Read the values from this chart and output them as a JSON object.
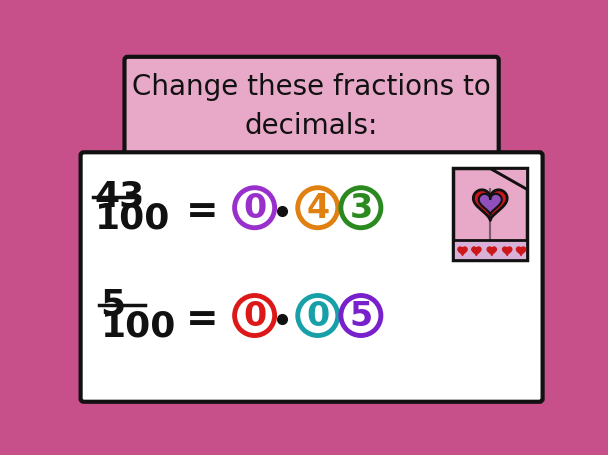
{
  "bg_pink": "#c8508a",
  "bg_white": "#ffffff",
  "header_bg": "#e8a8c8",
  "header_text": "Change these fractions to\ndecimals:",
  "header_text_color": "#111111",
  "fraction1_num": "43",
  "fraction1_den": "100",
  "fraction2_num": "5",
  "fraction2_den": "100",
  "row1_chips": [
    "0",
    "4",
    "3"
  ],
  "row1_colors": [
    "#9930cc",
    "#e08010",
    "#2a8a20"
  ],
  "row2_chips": [
    "0",
    "0",
    "5"
  ],
  "row2_colors": [
    "#dd1818",
    "#18a0a8",
    "#7820cc"
  ],
  "dot_color": "#111111",
  "equals_color": "#111111",
  "fraction_color": "#111111",
  "border_color": "#111111",
  "card_body": "#e8a8c8",
  "card_bottom": "#d8b0d8",
  "card_heart_outer": "#cc1818",
  "card_heart_inner": "#9050bb",
  "card_hearts_small": "#cc1818",
  "card_flap": "#e8a8c8"
}
